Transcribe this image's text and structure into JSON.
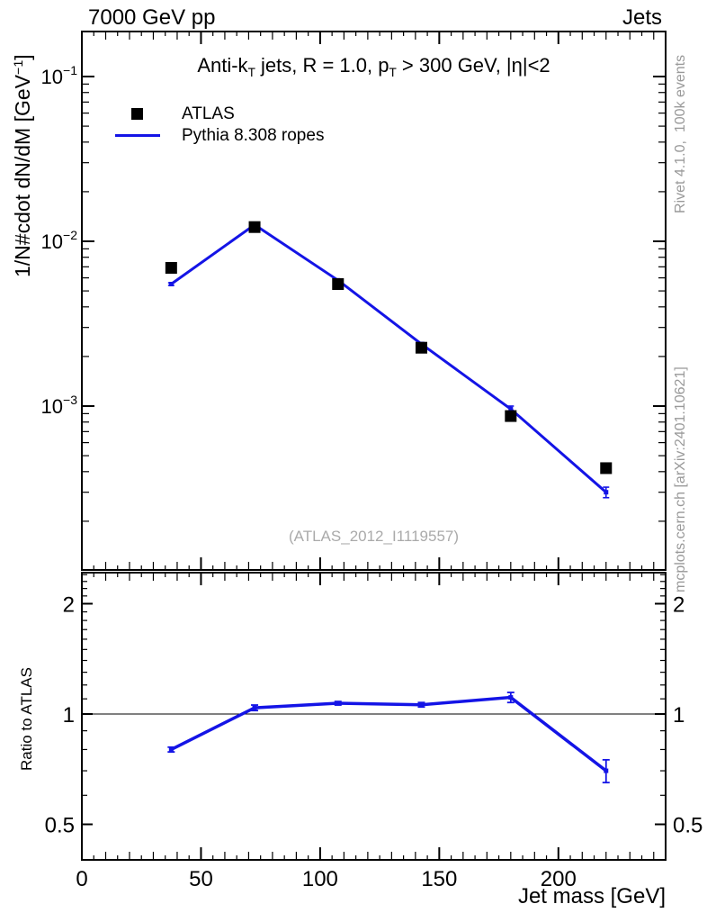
{
  "header": {
    "left": "7000 GeV pp",
    "right": "Jets"
  },
  "plot_title": {
    "parts": [
      {
        "t": "Anti-k"
      },
      {
        "sub": "T"
      },
      {
        "t": " jets, R = 1.0, p"
      },
      {
        "sub": "T"
      },
      {
        "t": " > 300 GeV, |η|<2"
      }
    ]
  },
  "y_axis_label": {
    "pre": "1/N#cdot dN/dM [GeV",
    "sup": "−1",
    "post": "]"
  },
  "legend": {
    "items": [
      {
        "label": "ATLAS",
        "marker": "filled-square",
        "color": "#000000"
      },
      {
        "label": "Pythia 8.308 ropes",
        "marker": "line",
        "color": "#1414e6"
      }
    ]
  },
  "watermark": "(ATLAS_2012_I1119557)",
  "side_notes": {
    "top": "Rivet 4.1.0,  100k events",
    "bottom": "mcplots.cern.ch [arXiv:2401.10621]"
  },
  "x_axis": {
    "label": "Jet mass [GeV]",
    "major_ticks": [
      0,
      50,
      100,
      150,
      200
    ],
    "range": [
      0,
      245
    ]
  },
  "main_y_axis": {
    "scale": "log",
    "labeled_exponents": [
      -1,
      -2,
      -3
    ],
    "range": [
      0.0001,
      0.188
    ]
  },
  "ratio_axis": {
    "label": "Ratio to ATLAS",
    "ticks": [
      2,
      1,
      0.5
    ],
    "scale": "log",
    "range": [
      0.4,
      2.43
    ],
    "reference": 1
  },
  "colors": {
    "accent_blue": "#1414e6",
    "gray_text": "#999999",
    "watermark_gray": "#aaaaaa",
    "black": "#000000"
  },
  "chart_data": {
    "type": "line",
    "title": "Anti-kT jets, R = 1.0, pT > 300 GeV, |η|<2",
    "xlabel": "Jet mass [GeV]",
    "ylabel": "1/N#cdot dN/dM [GeV^-1]",
    "x": [
      37.5,
      72.5,
      107.5,
      142.5,
      180,
      220
    ],
    "xlim": [
      0,
      245
    ],
    "ylog": true,
    "ylim": [
      0.0001,
      0.188
    ],
    "legend_position": "top-left-inside",
    "grid": false,
    "series": [
      {
        "name": "ATLAS",
        "style": "points",
        "marker": "square",
        "color": "#000000",
        "values": [
          0.0069,
          0.0122,
          0.0055,
          0.00226,
          0.00087,
          0.00042
        ]
      },
      {
        "name": "Pythia 8.308 ropes",
        "style": "line+points",
        "color": "#1414e6",
        "values": [
          0.0055,
          0.0126,
          0.0058,
          0.00238,
          0.00096,
          0.0003
        ],
        "yerr": [
          0.0001,
          0.00015,
          8e-05,
          5e-05,
          4e-05,
          2.2e-05
        ]
      }
    ],
    "ratio_panel": {
      "ylabel": "Ratio to ATLAS",
      "reference": 1,
      "ylim": [
        0.4,
        2.43
      ],
      "yticks": [
        2,
        1,
        0.5
      ],
      "series": [
        {
          "name": "Pythia 8.308 ropes / ATLAS",
          "color": "#1414e6",
          "values": [
            0.8,
            1.04,
            1.07,
            1.06,
            1.11,
            0.7
          ],
          "yerr": [
            0.012,
            0.018,
            0.012,
            0.015,
            0.035,
            0.05
          ]
        }
      ]
    }
  }
}
